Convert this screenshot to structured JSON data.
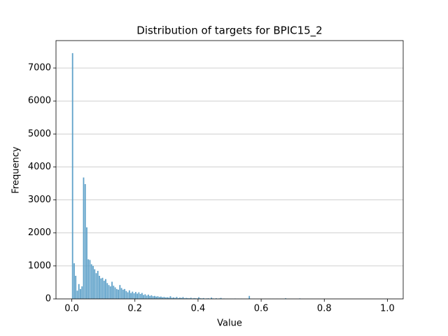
{
  "chart_data": {
    "type": "histogram",
    "title": "Distribution of targets for BPIC15_2",
    "x_label": "Value",
    "y_label": "Frequency",
    "color": "#5ea1c9",
    "grid": true,
    "xlim": [
      -0.05,
      1.05
    ],
    "ylim": [
      0,
      7830
    ],
    "xticks": [
      {
        "value": 0,
        "label": "0.0"
      },
      {
        "value": 0.2,
        "label": "0.2"
      },
      {
        "value": 0.4,
        "label": "0.4"
      },
      {
        "value": 0.6,
        "label": "0.6"
      },
      {
        "value": 0.8,
        "label": "0.8"
      },
      {
        "value": 1,
        "label": "1.0"
      }
    ],
    "yticks": [
      0,
      1000,
      2000,
      3000,
      4000,
      5000,
      6000,
      7000
    ],
    "bins": [
      0,
      0.005,
      0.01,
      0.015,
      0.02,
      0.025,
      0.03,
      0.035,
      0.04,
      0.045,
      0.05,
      0.055,
      0.06,
      0.065,
      0.07,
      0.075,
      0.08,
      0.085,
      0.09,
      0.095,
      0.1,
      0.105,
      0.11,
      0.115,
      0.12,
      0.125,
      0.13,
      0.135,
      0.14,
      0.145,
      0.15,
      0.155,
      0.16,
      0.165,
      0.17,
      0.175,
      0.18,
      0.185,
      0.19,
      0.195,
      0.2,
      0.205,
      0.21,
      0.215,
      0.22,
      0.225,
      0.23,
      0.235,
      0.24,
      0.245,
      0.25,
      0.255,
      0.26,
      0.265,
      0.27,
      0.275,
      0.28,
      0.285,
      0.29,
      0.295,
      0.3,
      0.305,
      0.31,
      0.315,
      0.32,
      0.325,
      0.33,
      0.335,
      0.34,
      0.345,
      0.35,
      0.355,
      0.36,
      0.365,
      0.37,
      0.375,
      0.38,
      0.385,
      0.39,
      0.395,
      0.4,
      0.405,
      0.41,
      0.415,
      0.42,
      0.425,
      0.43,
      0.435,
      0.44,
      0.445,
      0.45,
      0.455,
      0.46,
      0.465,
      0.47,
      0.475,
      0.48,
      0.485,
      0.49,
      0.495,
      0.5,
      0.505,
      0.51,
      0.515,
      0.52,
      0.525,
      0.53,
      0.535,
      0.54,
      0.545,
      0.55,
      0.555,
      0.56,
      0.565,
      0.57,
      0.575,
      0.58,
      0.585,
      0.59,
      0.595,
      0.6,
      0.605,
      0.61,
      0.615,
      0.62,
      0.625,
      0.63,
      0.635,
      0.64,
      0.645,
      0.65,
      0.655,
      0.66,
      0.665,
      0.67,
      0.675,
      0.68,
      0.685,
      0.69,
      0.695,
      0.7,
      0.705,
      0.71,
      0.715,
      0.72,
      0.725,
      0.73,
      0.735,
      0.74,
      0.745,
      0.75,
      0.755,
      0.76,
      0.765,
      0.77,
      0.775,
      0.78,
      0.785,
      0.79,
      0.795,
      0.8,
      0.805,
      0.81,
      0.815,
      0.82,
      0.825,
      0.83,
      0.835,
      0.84,
      0.845,
      0.85,
      0.855,
      0.86,
      0.865,
      0.87,
      0.875,
      0.88,
      0.885,
      0.89,
      0.895,
      0.9,
      0.905,
      0.91,
      0.915,
      0.92,
      0.925,
      0.93,
      0.935,
      0.94,
      0.945,
      0.95,
      0.955,
      0.96,
      0.965,
      0.97,
      0.975,
      0.98,
      0.985,
      0.99,
      0.995,
      1
    ],
    "values": [
      7450,
      1080,
      700,
      250,
      450,
      300,
      380,
      3680,
      3480,
      2170,
      1200,
      1180,
      1050,
      1000,
      900,
      780,
      850,
      700,
      620,
      640,
      550,
      600,
      480,
      420,
      380,
      520,
      400,
      350,
      300,
      280,
      420,
      330,
      280,
      300,
      240,
      200,
      260,
      180,
      220,
      170,
      210,
      160,
      200,
      150,
      180,
      120,
      140,
      100,
      130,
      90,
      110,
      80,
      90,
      70,
      80,
      60,
      70,
      50,
      60,
      45,
      50,
      40,
      80,
      35,
      45,
      30,
      60,
      25,
      40,
      30,
      55,
      20,
      30,
      25,
      20,
      35,
      15,
      25,
      20,
      15,
      50,
      20,
      15,
      25,
      10,
      15,
      20,
      10,
      40,
      15,
      10,
      20,
      8,
      15,
      30,
      10,
      12,
      8,
      10,
      6,
      8,
      10,
      6,
      12,
      5,
      8,
      6,
      10,
      5,
      4,
      6,
      5,
      90,
      5,
      4,
      6,
      3,
      5,
      4,
      3,
      5,
      3,
      4,
      2,
      3,
      5,
      2,
      3,
      2,
      4,
      3,
      2,
      3,
      2,
      2,
      20,
      2,
      3,
      1,
      2,
      2,
      1,
      2,
      1,
      15,
      1,
      2,
      1,
      1,
      2,
      1,
      1,
      2,
      1,
      1,
      1,
      2,
      1,
      1,
      1,
      1,
      1,
      0,
      1,
      0,
      1,
      1,
      0,
      1,
      0,
      1,
      0,
      1,
      0,
      0,
      1,
      0,
      1,
      0,
      0,
      0,
      1,
      0,
      0,
      1,
      0,
      0,
      0,
      1,
      0,
      0,
      0,
      0,
      1,
      0,
      0,
      0,
      0,
      0,
      3
    ]
  }
}
